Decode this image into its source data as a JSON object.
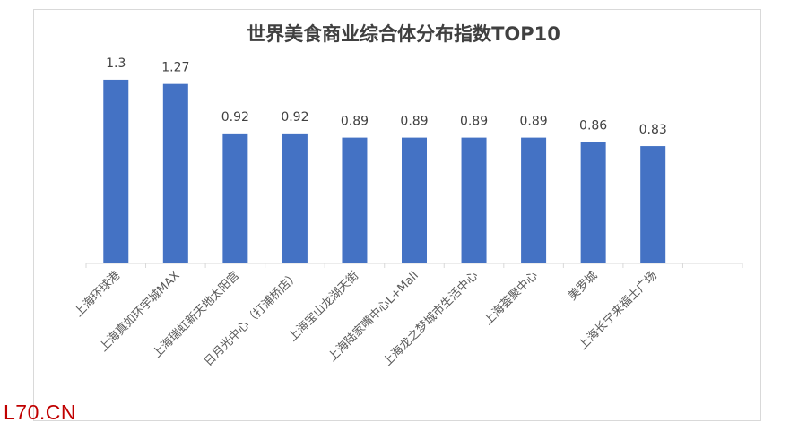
{
  "chart_data": {
    "type": "bar",
    "title": "世界美食商业综合体分布指数TOP10",
    "categories": [
      "上海环球港",
      "上海真如环宇城MAX",
      "上海瑞虹新天地太阳宫",
      "日月光中心（打浦桥店）",
      "上海宝山龙湖天街",
      "上海陆家嘴中心L+Mall",
      "上海龙之梦城市生活中心",
      "上海荟聚中心",
      "美罗城",
      "上海长宁来福士广场"
    ],
    "values": [
      1.3,
      1.27,
      0.92,
      0.92,
      0.89,
      0.89,
      0.89,
      0.89,
      0.86,
      0.83
    ],
    "data_labels": [
      "1.3",
      "1.27",
      "0.92",
      "0.92",
      "0.89",
      "0.89",
      "0.89",
      "0.89",
      "0.86",
      "0.83"
    ],
    "ylim": [
      0,
      1.42
    ],
    "grid": false,
    "colors": {
      "bar": "#4472c4",
      "axis": "#d9d9d9",
      "label": "#595959",
      "data_label": "#404040"
    }
  },
  "watermark": "L70.CN"
}
